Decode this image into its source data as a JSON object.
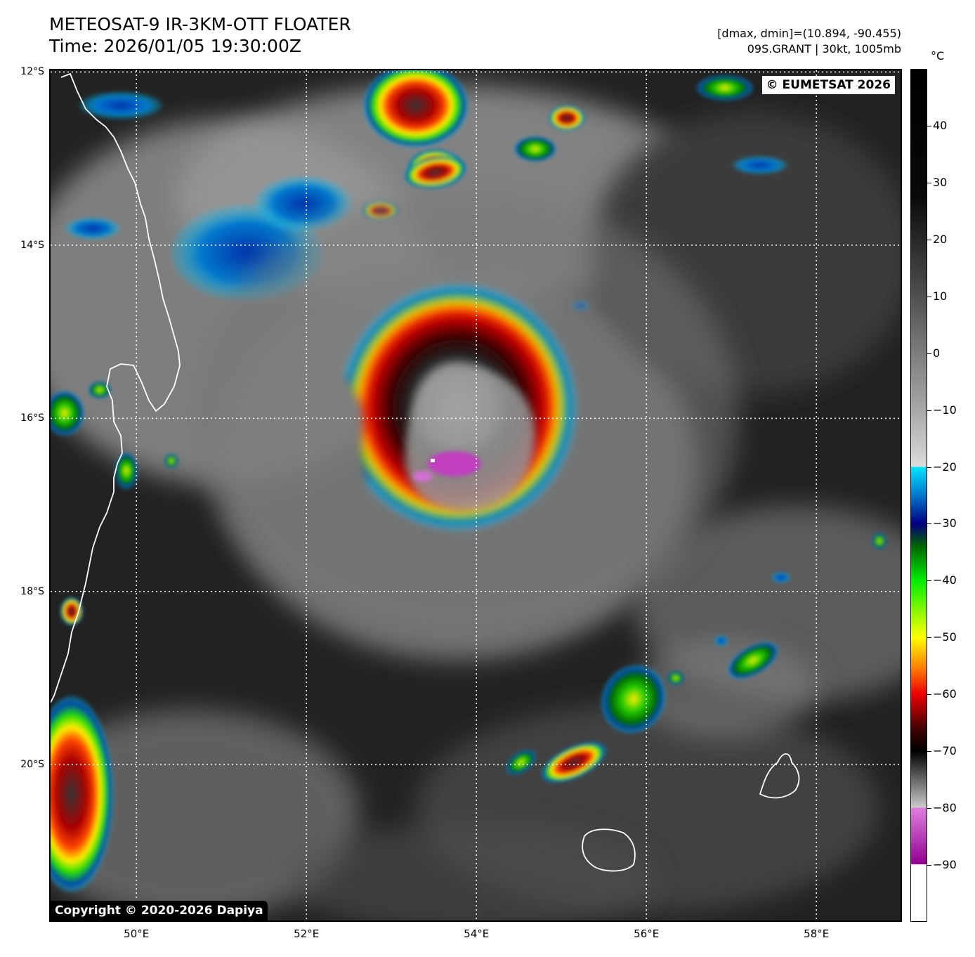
{
  "header": {
    "title_line1": "METEOSAT-9 IR-3KM-OTT FLOATER",
    "title_line2": "Time: 2026/01/05 19:30:00Z",
    "info_line1": "[dmax, dmin]=(10.894, -90.455)",
    "info_line2": "09S.GRANT | 30kt, 1005mb"
  },
  "map": {
    "lat_range": [
      -21.8,
      -11.98
    ],
    "lon_range": [
      48.99,
      58.99
    ],
    "lat_labels": [
      {
        "value": -12,
        "text": "12°S"
      },
      {
        "value": -14,
        "text": "14°S"
      },
      {
        "value": -16,
        "text": "16°S"
      },
      {
        "value": -18,
        "text": "18°S"
      },
      {
        "value": -20,
        "text": "20°S"
      }
    ],
    "lon_labels": [
      {
        "value": 50,
        "text": "50°E"
      },
      {
        "value": 52,
        "text": "52°E"
      },
      {
        "value": 54,
        "text": "54°E"
      },
      {
        "value": 56,
        "text": "56°E"
      },
      {
        "value": 58,
        "text": "58°E"
      }
    ],
    "copyright_eumetsat": "© EUMETSAT 2026",
    "copyright_dapiya": "Copyright © 2020-2026 Dapiya",
    "colors": {
      "background_dark": "#1f1f1f",
      "coast": "#ffffff",
      "grid": "#ffffff"
    }
  },
  "colorbar": {
    "unit": "°C",
    "range": [
      -100,
      50
    ],
    "ticks": [
      40,
      30,
      20,
      10,
      0,
      -10,
      -20,
      -30,
      -40,
      -50,
      -60,
      -70,
      -80,
      -90
    ],
    "tick_labels": [
      "40",
      "30",
      "20",
      "10",
      "0",
      "−10",
      "−20",
      "−30",
      "−40",
      "−50",
      "−60",
      "−70",
      "−80",
      "−90"
    ],
    "stops": [
      {
        "t": 50,
        "color": "#000000"
      },
      {
        "t": 28,
        "color": "#080808"
      },
      {
        "t": 10,
        "color": "#505050"
      },
      {
        "t": -10,
        "color": "#a8a8a8"
      },
      {
        "t": -20,
        "color": "#dcdcdc"
      },
      {
        "t": -20.01,
        "color": "#00e5ff"
      },
      {
        "t": -25,
        "color": "#0077cc"
      },
      {
        "t": -30,
        "color": "#000080"
      },
      {
        "t": -34,
        "color": "#006600"
      },
      {
        "t": -40,
        "color": "#00ee00"
      },
      {
        "t": -50,
        "color": "#ffff00"
      },
      {
        "t": -55,
        "color": "#ff8800"
      },
      {
        "t": -60,
        "color": "#ee0000"
      },
      {
        "t": -66,
        "color": "#440000"
      },
      {
        "t": -70,
        "color": "#000000"
      },
      {
        "t": -80,
        "color": "#cccccc"
      },
      {
        "t": -80.01,
        "color": "#e080e0"
      },
      {
        "t": -90,
        "color": "#900090"
      },
      {
        "t": -90.01,
        "color": "#ffffff"
      },
      {
        "t": -100,
        "color": "#ffffff"
      }
    ]
  }
}
